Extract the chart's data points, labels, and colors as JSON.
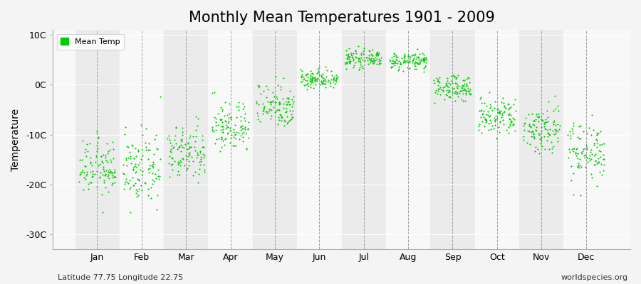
{
  "title": "Monthly Mean Temperatures 1901 - 2009",
  "ylabel": "Temperature",
  "xlabel_months": [
    "Jan",
    "Feb",
    "Mar",
    "Apr",
    "May",
    "Jun",
    "Jul",
    "Aug",
    "Sep",
    "Oct",
    "Nov",
    "Dec"
  ],
  "subtitle_left": "Latitude 77.75 Longitude 22.75",
  "subtitle_right": "worldspecies.org",
  "yticks": [
    -30,
    -20,
    -10,
    0,
    10
  ],
  "ytick_labels": [
    "-30C",
    "-20C",
    "-10C",
    "0C",
    "10C"
  ],
  "ylim": [
    -33,
    11
  ],
  "xlim": [
    0,
    13
  ],
  "dot_color": "#00cc00",
  "dot_size": 4,
  "background_color": "#f4f4f4",
  "plot_bg_color": "#f4f4f4",
  "legend_color": "#00cc00",
  "monthly_means": [
    -17.5,
    -18.0,
    -14.5,
    -9.0,
    -4.5,
    1.0,
    5.0,
    4.5,
    -1.0,
    -7.0,
    -9.5,
    -14.0
  ],
  "monthly_stds": [
    2.8,
    3.5,
    2.8,
    2.5,
    2.2,
    1.0,
    0.8,
    0.8,
    1.2,
    2.0,
    2.5,
    3.0
  ],
  "monthly_trend": [
    0.015,
    0.018,
    0.012,
    0.01,
    0.008,
    0.005,
    0.004,
    0.005,
    0.008,
    0.01,
    0.012,
    0.015
  ],
  "n_years": 109,
  "dpi": 100,
  "figsize": [
    9.0,
    4.0
  ],
  "title_fontsize": 15,
  "axis_label_fontsize": 10,
  "tick_fontsize": 9,
  "subtitle_fontsize": 8
}
